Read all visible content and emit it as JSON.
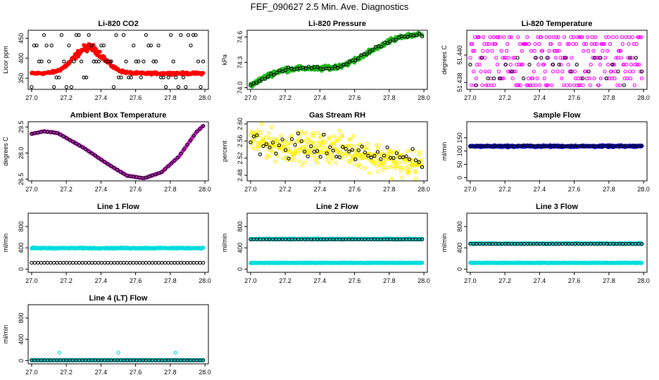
{
  "main_title": "FEF_090627  2.5 Min. Ave. Diagnostics",
  "chart_data": [
    {
      "type": "scatter",
      "title": "Li-820 CO2",
      "xlabel": "",
      "ylabel": "Licor ppm",
      "xlim": [
        26.98,
        28.02
      ],
      "ylim": [
        322,
        470
      ],
      "xticks": [
        27.0,
        27.2,
        27.4,
        27.6,
        27.8,
        28.0
      ],
      "xtick_labels": [
        "27.0",
        "27.2",
        "27.4",
        "27.6",
        "27.8",
        "28.0"
      ],
      "yticks": [
        350,
        400,
        450
      ],
      "ytick_labels": [
        "350",
        "400",
        "450"
      ],
      "series": [
        {
          "name": "co2-fill",
          "color": "#ff0000",
          "filled": true,
          "model": "hump",
          "base": 362,
          "peak": 65,
          "center": 27.33,
          "width": 0.12,
          "noise": 10,
          "count": 320
        },
        {
          "name": "co2-raw",
          "color": "#000000",
          "filled": false,
          "model": "levels",
          "levels": [
            328,
            352,
            392,
            432,
            458
          ],
          "count": 70
        }
      ]
    },
    {
      "type": "scatter",
      "title": "Li-820 Pressure",
      "xlabel": "",
      "ylabel": "kPa",
      "xlim": [
        26.98,
        28.02
      ],
      "ylim": [
        73.98,
        74.68
      ],
      "xticks": [
        27.0,
        27.2,
        27.4,
        27.6,
        27.8,
        28.0
      ],
      "xtick_labels": [
        "27.0",
        "27.2",
        "27.4",
        "27.6",
        "27.8",
        "28.0"
      ],
      "yticks": [
        74.0,
        74.3,
        74.6
      ],
      "ytick_labels": [
        "74.0",
        "74.3",
        "74.6"
      ],
      "series": [
        {
          "name": "pressure-fill",
          "color": "#22bb22",
          "filled": true,
          "model": "rise",
          "start": 74.03,
          "end": 74.6,
          "noise": 0.04,
          "count": 320
        },
        {
          "name": "pressure-raw",
          "color": "#000000",
          "filled": false,
          "model": "rise",
          "start": 74.03,
          "end": 74.6,
          "noise": 0.03,
          "count": 60
        }
      ]
    },
    {
      "type": "scatter",
      "title": "Li-820 Temperature",
      "xlabel": "",
      "ylabel": "degrees C",
      "xlim": [
        26.98,
        28.02
      ],
      "ylim": [
        51.4375,
        51.4418
      ],
      "xticks": [
        27.0,
        27.2,
        27.4,
        27.6,
        27.8,
        28.0
      ],
      "xtick_labels": [
        "27.0",
        "27.2",
        "27.4",
        "27.6",
        "27.8",
        "28.0"
      ],
      "yticks": [
        51.438,
        51.44
      ],
      "ytick_labels": [
        "51.438",
        "51.440"
      ],
      "series": [
        {
          "name": "temp-fill",
          "color": "#ff00ff",
          "filled": false,
          "model": "levels",
          "levels": [
            51.4378,
            51.4383,
            51.4388,
            51.4393,
            51.4398,
            51.4403,
            51.4408,
            51.4413
          ],
          "count": 260
        },
        {
          "name": "temp-raw",
          "color": "#000000",
          "filled": false,
          "model": "levels",
          "levels": [
            51.4378,
            51.4383,
            51.4388,
            51.4393,
            51.4398
          ],
          "count": 30
        }
      ]
    },
    {
      "type": "scatter",
      "title": "Ambient Box Temperature",
      "xlabel": "",
      "ylabel": "degrees C",
      "xlim": [
        26.98,
        28.02
      ],
      "ylim": [
        26.4,
        29.8
      ],
      "xticks": [
        27.0,
        27.2,
        27.4,
        27.6,
        27.8,
        28.0
      ],
      "xtick_labels": [
        "27.0",
        "27.2",
        "27.4",
        "27.6",
        "27.8",
        "28.0"
      ],
      "yticks": [
        26.5,
        28.0,
        29.5
      ],
      "ytick_labels": [
        "26.5",
        "28.0",
        "29.5"
      ],
      "series": [
        {
          "name": "box-fill",
          "color": "#cc22cc",
          "filled": true,
          "model": "curve",
          "points": [
            [
              27.0,
              29.1
            ],
            [
              27.07,
              29.25
            ],
            [
              27.15,
              29.15
            ],
            [
              27.3,
              28.3
            ],
            [
              27.45,
              27.3
            ],
            [
              27.55,
              26.7
            ],
            [
              27.65,
              26.55
            ],
            [
              27.75,
              26.9
            ],
            [
              27.85,
              27.8
            ],
            [
              27.95,
              29.2
            ],
            [
              28.0,
              29.65
            ]
          ],
          "noise": 0.03,
          "count": 320
        },
        {
          "name": "box-raw",
          "color": "#000000",
          "filled": false,
          "model": "curve",
          "points": [
            [
              27.0,
              29.1
            ],
            [
              27.07,
              29.25
            ],
            [
              27.15,
              29.15
            ],
            [
              27.3,
              28.3
            ],
            [
              27.45,
              27.3
            ],
            [
              27.55,
              26.7
            ],
            [
              27.65,
              26.55
            ],
            [
              27.75,
              26.9
            ],
            [
              27.85,
              27.8
            ],
            [
              27.95,
              29.2
            ],
            [
              28.0,
              29.65
            ]
          ],
          "noise": 0.0,
          "count": 55
        }
      ]
    },
    {
      "type": "scatter",
      "title": "Gas Stream RH",
      "xlabel": "",
      "ylabel": "percent",
      "xlim": [
        26.98,
        28.02
      ],
      "ylim": [
        2.467,
        2.605
      ],
      "xticks": [
        27.0,
        27.2,
        27.4,
        27.6,
        27.8,
        28.0
      ],
      "xtick_labels": [
        "27.0",
        "27.2",
        "27.4",
        "27.6",
        "27.8",
        "28.0"
      ],
      "yticks": [
        2.48,
        2.52,
        2.56,
        2.6
      ],
      "ytick_labels": [
        "2.48",
        "2.52",
        "2.56",
        "2.60"
      ],
      "series": [
        {
          "name": "rh-fill",
          "color": "#ffee00",
          "filled": false,
          "model": "rise",
          "start": 2.565,
          "end": 2.51,
          "noise": 0.05,
          "count": 380
        },
        {
          "name": "rh-raw",
          "color": "#000000",
          "filled": false,
          "model": "rise",
          "start": 2.56,
          "end": 2.515,
          "noise": 0.04,
          "count": 55
        }
      ]
    },
    {
      "type": "scatter",
      "title": "Sample Flow",
      "xlabel": "",
      "ylabel": "ml/min",
      "xlim": [
        26.98,
        28.02
      ],
      "ylim": [
        -12,
        210
      ],
      "xticks": [
        27.0,
        27.2,
        27.4,
        27.6,
        27.8,
        28.0
      ],
      "xtick_labels": [
        "27.0",
        "27.2",
        "27.4",
        "27.6",
        "27.8",
        "28.0"
      ],
      "yticks": [
        0,
        50,
        100,
        150
      ],
      "ytick_labels": [
        "0",
        "50",
        "100",
        "150"
      ],
      "series": [
        {
          "name": "sample-fill",
          "color": "#0000cc",
          "filled": true,
          "model": "flat",
          "value": 118,
          "noise": 5,
          "count": 360
        },
        {
          "name": "sample-raw",
          "color": "#000000",
          "filled": false,
          "model": "flat",
          "value": 119,
          "noise": 3,
          "count": 55
        }
      ]
    },
    {
      "type": "scatter",
      "title": "Line 1 Flow",
      "xlabel": "",
      "ylabel": "ml/min",
      "xlim": [
        26.98,
        28.02
      ],
      "ylim": [
        -60,
        1050
      ],
      "xticks": [
        27.0,
        27.2,
        27.4,
        27.6,
        27.8,
        28.0
      ],
      "xtick_labels": [
        "27.0",
        "27.2",
        "27.4",
        "27.6",
        "27.8",
        "28.0"
      ],
      "yticks": [
        0,
        400,
        800
      ],
      "ytick_labels": [
        "0",
        "400",
        "800"
      ],
      "series": [
        {
          "name": "line1-fill",
          "color": "#00dddd",
          "filled": true,
          "model": "flat",
          "value": 395,
          "noise": 14,
          "count": 360
        },
        {
          "name": "line1-raw",
          "color": "#000000",
          "filled": false,
          "model": "flat",
          "value": 120,
          "noise": 0,
          "count": 55
        }
      ]
    },
    {
      "type": "scatter",
      "title": "Line 2 Flow",
      "xlabel": "",
      "ylabel": "ml/min",
      "xlim": [
        26.98,
        28.02
      ],
      "ylim": [
        -60,
        1050
      ],
      "xticks": [
        27.0,
        27.2,
        27.4,
        27.6,
        27.8,
        28.0
      ],
      "xtick_labels": [
        "27.0",
        "27.2",
        "27.4",
        "27.6",
        "27.8",
        "28.0"
      ],
      "yticks": [
        0,
        400,
        800
      ],
      "ytick_labels": [
        "0",
        "400",
        "800"
      ],
      "series": [
        {
          "name": "line2-fill",
          "color": "#00dddd",
          "filled": true,
          "model": "flat",
          "value": 565,
          "noise": 14,
          "count": 360
        },
        {
          "name": "line2-fill-low",
          "color": "#00dddd",
          "filled": true,
          "model": "flat",
          "value": 118,
          "noise": 8,
          "count": 360
        },
        {
          "name": "line2-raw",
          "color": "#000000",
          "filled": false,
          "model": "flat",
          "value": 560,
          "noise": 0,
          "count": 55
        }
      ]
    },
    {
      "type": "scatter",
      "title": "Line 3 Flow",
      "xlabel": "",
      "ylabel": "ml/min",
      "xlim": [
        26.98,
        28.02
      ],
      "ylim": [
        -60,
        1050
      ],
      "xticks": [
        27.0,
        27.2,
        27.4,
        27.6,
        27.8,
        28.0
      ],
      "xtick_labels": [
        "27.0",
        "27.2",
        "27.4",
        "27.6",
        "27.8",
        "28.0"
      ],
      "yticks": [
        0,
        400,
        800
      ],
      "ytick_labels": [
        "0",
        "400",
        "800"
      ],
      "series": [
        {
          "name": "line3-fill",
          "color": "#00dddd",
          "filled": true,
          "model": "flat",
          "value": 480,
          "noise": 14,
          "count": 360
        },
        {
          "name": "line3-fill-low",
          "color": "#00dddd",
          "filled": true,
          "model": "flat",
          "value": 118,
          "noise": 8,
          "count": 360
        },
        {
          "name": "line3-raw",
          "color": "#000000",
          "filled": false,
          "model": "flat",
          "value": 475,
          "noise": 0,
          "count": 55
        }
      ]
    },
    {
      "type": "scatter",
      "title": "Line 4 (LT) Flow",
      "xlabel": "",
      "ylabel": "ml/min",
      "xlim": [
        26.98,
        28.02
      ],
      "ylim": [
        -60,
        1050
      ],
      "xticks": [
        27.0,
        27.2,
        27.4,
        27.6,
        27.8,
        28.0
      ],
      "xtick_labels": [
        "27.0",
        "27.2",
        "27.4",
        "27.6",
        "27.8",
        "28.0"
      ],
      "yticks": [
        0,
        400,
        800
      ],
      "ytick_labels": [
        "0",
        "400",
        "800"
      ],
      "series": [
        {
          "name": "line4-fill",
          "color": "#00dddd",
          "filled": true,
          "model": "flat",
          "value": 8,
          "noise": 3,
          "count": 360
        },
        {
          "name": "line4-spikes",
          "color": "#00dddd",
          "filled": false,
          "model": "points",
          "points": [
            [
              27.16,
              150
            ],
            [
              27.5,
              150
            ],
            [
              27.83,
              150
            ]
          ]
        },
        {
          "name": "line4-raw",
          "color": "#000000",
          "filled": false,
          "model": "flat",
          "value": 8,
          "noise": 0,
          "count": 55
        }
      ]
    }
  ]
}
